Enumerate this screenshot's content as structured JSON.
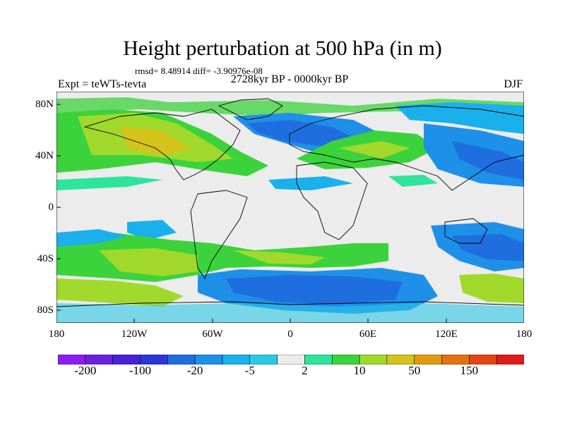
{
  "title": "Height perturbation at 500 hPa (in m)",
  "stats": "rmsd= 8.48914 diff= -3.90976e-08",
  "experiment": "Expt = teWTs-tevta",
  "period": "2728kyr BP - 0000kyr BP",
  "season": "DJF",
  "axes": {
    "lat_labels": [
      "80N",
      "40N",
      "0",
      "40S",
      "80S"
    ],
    "lon_labels": [
      "180",
      "120W",
      "60W",
      "0",
      "60E",
      "120E",
      "180"
    ]
  },
  "colorbar": {
    "colors": [
      "#8a1df0",
      "#6a21df",
      "#4a21d6",
      "#2a36d6",
      "#1f6ee0",
      "#1f90e8",
      "#1ab0ec",
      "#2dc8e6",
      "#ececec",
      "#2ee39a",
      "#3cd23c",
      "#a0d92b",
      "#d4c31a",
      "#e29a13",
      "#e6700f",
      "#e44612",
      "#e01b1b"
    ],
    "labels": [
      "-200",
      "-100",
      "-20",
      "-5",
      "2",
      "10",
      "50",
      "150"
    ]
  },
  "legend_colors": {
    "ocean_neutral": "#ececec",
    "coast": "#000000"
  }
}
